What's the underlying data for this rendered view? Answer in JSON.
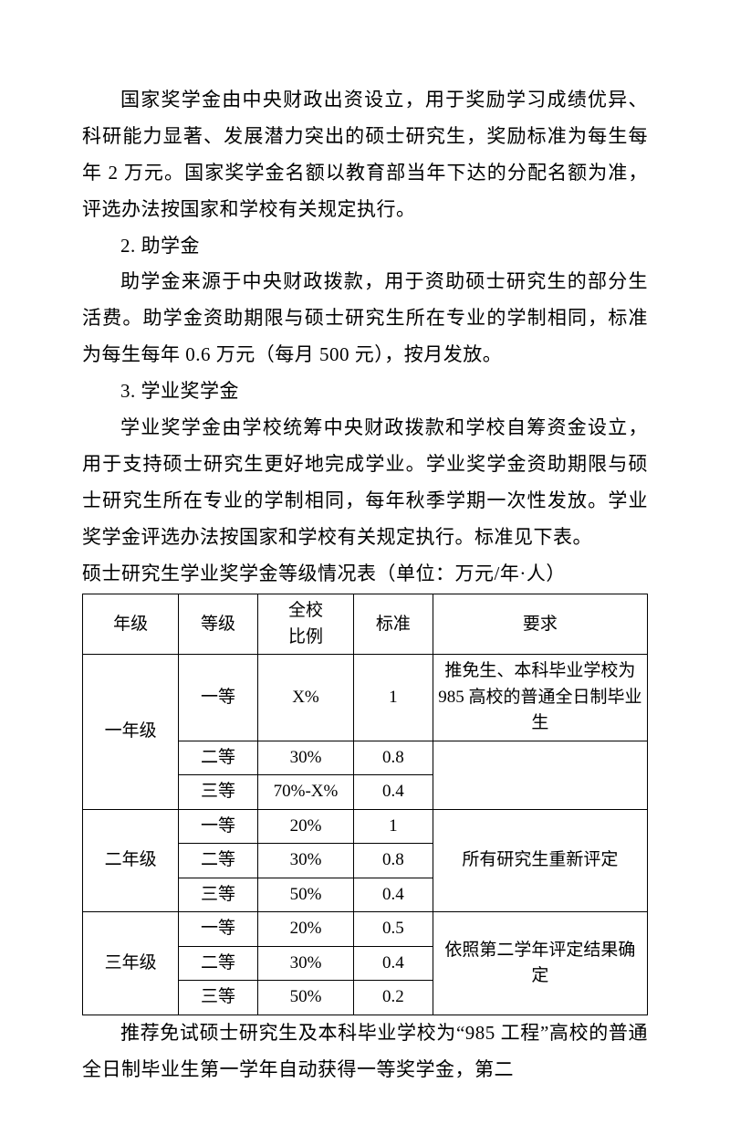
{
  "paragraphs": {
    "p1": "国家奖学金由中央财政出资设立，用于奖励学习成绩优异、科研能力显著、发展潜力突出的硕士研究生，奖励标准为每生每年 2 万元。国家奖学金名额以教育部当年下达的分配名额为准，评选办法按国家和学校有关规定执行。",
    "h2": "2. 助学金",
    "p2": "助学金来源于中央财政拨款，用于资助硕士研究生的部分生活费。助学金资助期限与硕士研究生所在专业的学制相同，标准为每生每年 0.6 万元（每月 500 元），按月发放。",
    "h3": "3. 学业奖学金",
    "p3": "学业奖学金由学校统筹中央财政拨款和学校自筹资金设立，用于支持硕士研究生更好地完成学业。学业奖学金资助期限与硕士研究生所在专业的学制相同，每年秋季学期一次性发放。学业奖学金评选办法按国家和学校有关规定执行。标准见下表。",
    "table_title": "硕士研究生学业奖学金等级情况表（单位：万元/年·人）",
    "p4": "推荐免试硕士研究生及本科毕业学校为“985 工程”高校的普通全日制毕业生第一学年自动获得一等奖学金，第二"
  },
  "table": {
    "headers": {
      "grade": "年级",
      "level": "等级",
      "ratio": "全校\n比例",
      "standard": "标准",
      "requirement": "要求"
    },
    "rows": {
      "y1_label": "一年级",
      "y1_lv1": "一等",
      "y1_r1": "X%",
      "y1_s1": "1",
      "y1_req1": "推免生、本科毕业学校为 985 高校的普通全日制毕业生",
      "y1_lv2": "二等",
      "y1_r2": "30%",
      "y1_s2": "0.8",
      "y1_lv3": "三等",
      "y1_r3": "70%-X%",
      "y1_s3": "0.4",
      "y2_label": "二年级",
      "y2_lv1": "一等",
      "y2_r1": "20%",
      "y2_s1": "1",
      "y2_lv2": "二等",
      "y2_r2": "30%",
      "y2_s2": "0.8",
      "y2_lv3": "三等",
      "y2_r3": "50%",
      "y2_s3": "0.4",
      "y2_req": "所有研究生重新评定",
      "y3_label": "三年级",
      "y3_lv1": "一等",
      "y3_r1": "20%",
      "y3_s1": "0.5",
      "y3_lv2": "二等",
      "y3_r2": "30%",
      "y3_s2": "0.4",
      "y3_lv3": "三等",
      "y3_r3": "50%",
      "y3_s3": "0.2",
      "y3_req": "依照第二学年评定结果确定"
    }
  }
}
